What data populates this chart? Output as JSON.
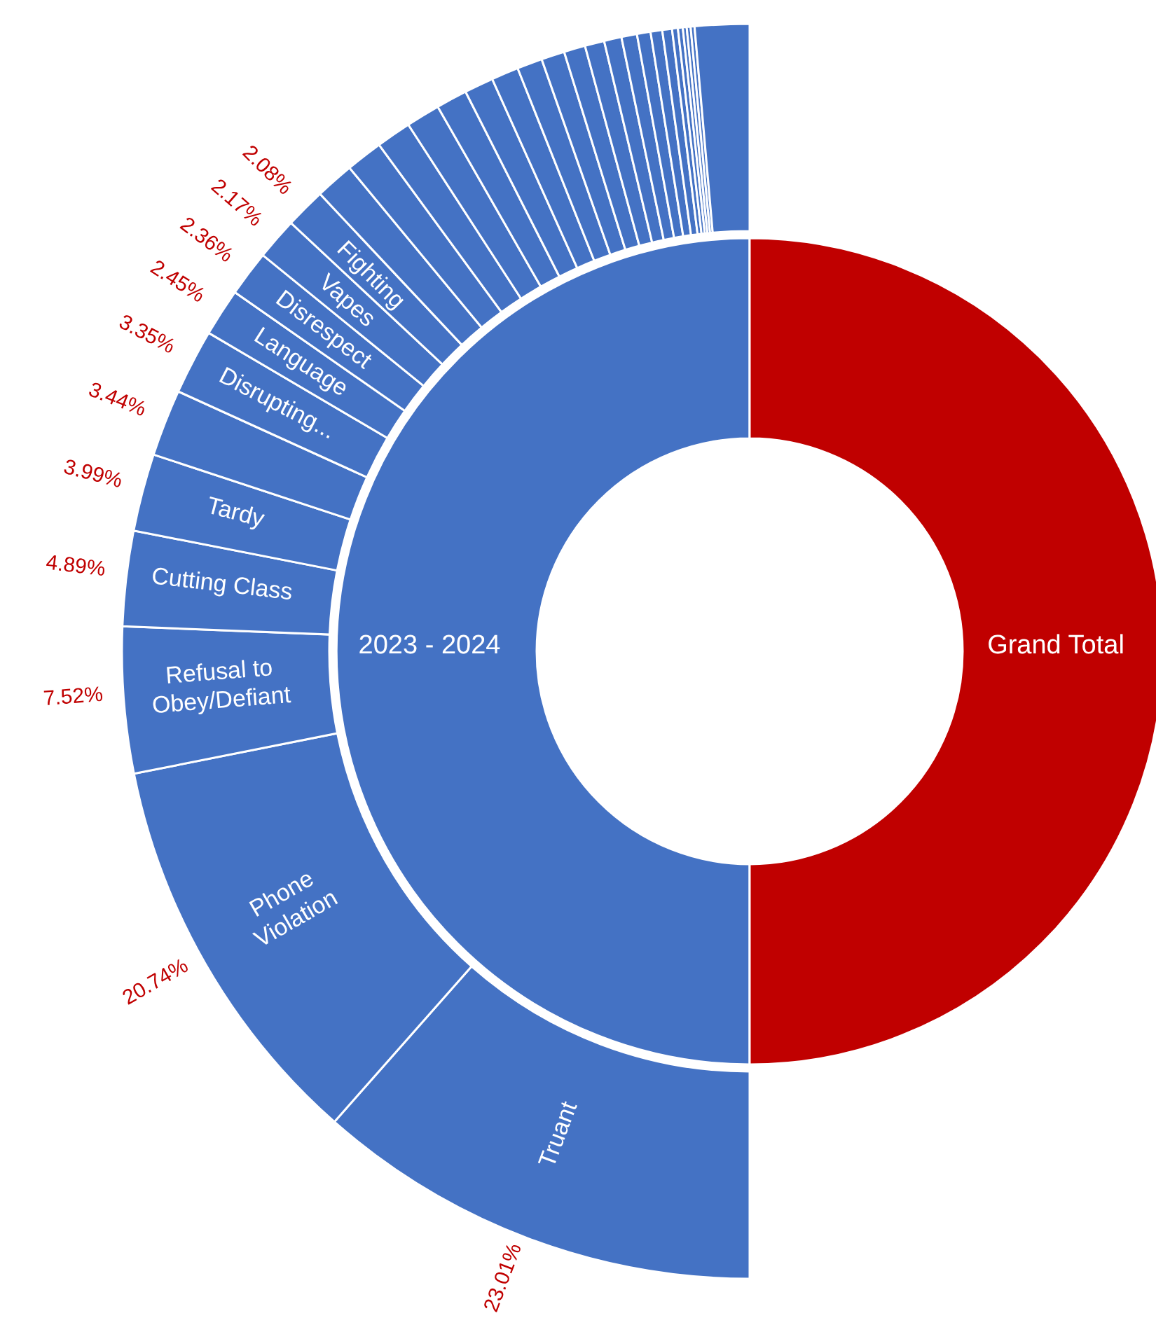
{
  "chart_data": [
    {
      "type": "donut",
      "categories": [
        "2023 - 2024",
        "Grand Total"
      ],
      "values": [
        50,
        50
      ],
      "colors": [
        "#4472c4",
        "#c00000"
      ]
    },
    {
      "type": "donut",
      "categories": [
        "Truant",
        "Phone Violation",
        "Refusal to Obey/Defiant",
        "Cutting Class",
        "Tardy",
        null,
        "Disrupting...",
        "Language",
        "Disrespect",
        "Vapes",
        "Fighting",
        null,
        null,
        null,
        null,
        null,
        null,
        null,
        null,
        null,
        null,
        null,
        null,
        null,
        null,
        null,
        null,
        null,
        null,
        null,
        null,
        null,
        null
      ],
      "values": [
        23.01,
        20.74,
        7.52,
        4.89,
        3.99,
        3.44,
        3.35,
        2.45,
        2.36,
        2.17,
        2.08,
        2.0,
        1.9,
        1.8,
        1.75,
        1.6,
        1.5,
        1.4,
        1.3,
        1.2,
        1.1,
        1.0,
        0.9,
        0.8,
        0.7,
        0.6,
        0.5,
        0.3,
        0.25,
        0.2,
        0.2,
        0.2,
        2.8
      ],
      "color": "#4472c4",
      "value_labels": [
        "23.01%",
        "20.74%",
        "7.52%",
        "4.89%",
        "3.99%",
        "3.44%",
        "3.35%",
        "2.45%",
        "2.36%",
        "2.17%",
        "2.08%",
        null,
        null,
        null,
        null,
        null,
        null,
        null,
        null,
        null,
        null,
        null,
        null,
        null,
        null,
        null,
        null,
        null,
        null,
        null,
        null,
        null,
        null
      ]
    }
  ]
}
